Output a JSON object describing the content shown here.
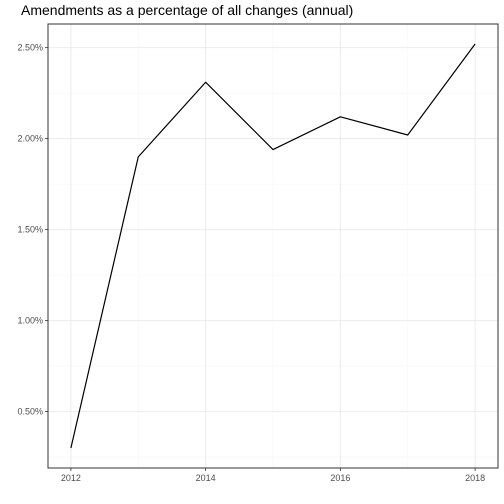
{
  "chart_data": {
    "type": "line",
    "title": "Amendments as a percentage of all changes (annual)",
    "xlabel": "",
    "ylabel": "",
    "x": [
      2012,
      2013,
      2014,
      2015,
      2016,
      2017,
      2018
    ],
    "series": [
      {
        "values": [
          0.3,
          1.9,
          2.31,
          1.94,
          2.12,
          2.02,
          2.52
        ]
      }
    ],
    "xlim": [
      2011.66,
      2018.34
    ],
    "ylim": [
      0.19,
      2.63
    ],
    "x_ticks": [
      2012,
      2014,
      2016,
      2018
    ],
    "x_tick_labels": [
      "2012",
      "2014",
      "2016",
      "2018"
    ],
    "y_ticks": [
      0.5,
      1.0,
      1.5,
      2.0,
      2.5
    ],
    "y_tick_labels": [
      "0.50%",
      "1.00%",
      "1.50%",
      "2.00%",
      "2.50%"
    ],
    "y_unit": "percent",
    "grid": true,
    "legend": "none",
    "theme": "bw",
    "colors": {
      "line": "#000000",
      "panel_border": "#333333",
      "grid_major": "#ebebeb",
      "grid_minor": "#f5f5f5",
      "tick_text": "#4d4d4d"
    }
  }
}
